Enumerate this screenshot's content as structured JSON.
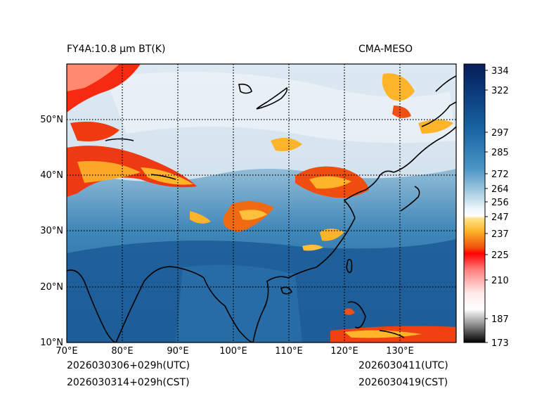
{
  "header": {
    "left_title": "FY4A:10.8 µm BT(K)",
    "right_title": "CMA-MESO"
  },
  "footer": {
    "init_utc": "2026030306+029h(UTC)",
    "init_cst": "2026030314+029h(CST)",
    "valid_utc": "2026030411(UTC)",
    "valid_cst": "2026030419(CST)"
  },
  "map": {
    "lon_labels": [
      "70°E",
      "80°E",
      "90°E",
      "100°E",
      "110°E",
      "120°E",
      "130°E"
    ],
    "lat_labels": [
      "10°N",
      "20°N",
      "30°N",
      "40°N",
      "50°N"
    ]
  },
  "colorbar": {
    "tick_labels": [
      "334",
      "322",
      "297",
      "285",
      "272",
      "264",
      "256",
      "247",
      "237",
      "225",
      "210",
      "187",
      "173"
    ]
  }
}
